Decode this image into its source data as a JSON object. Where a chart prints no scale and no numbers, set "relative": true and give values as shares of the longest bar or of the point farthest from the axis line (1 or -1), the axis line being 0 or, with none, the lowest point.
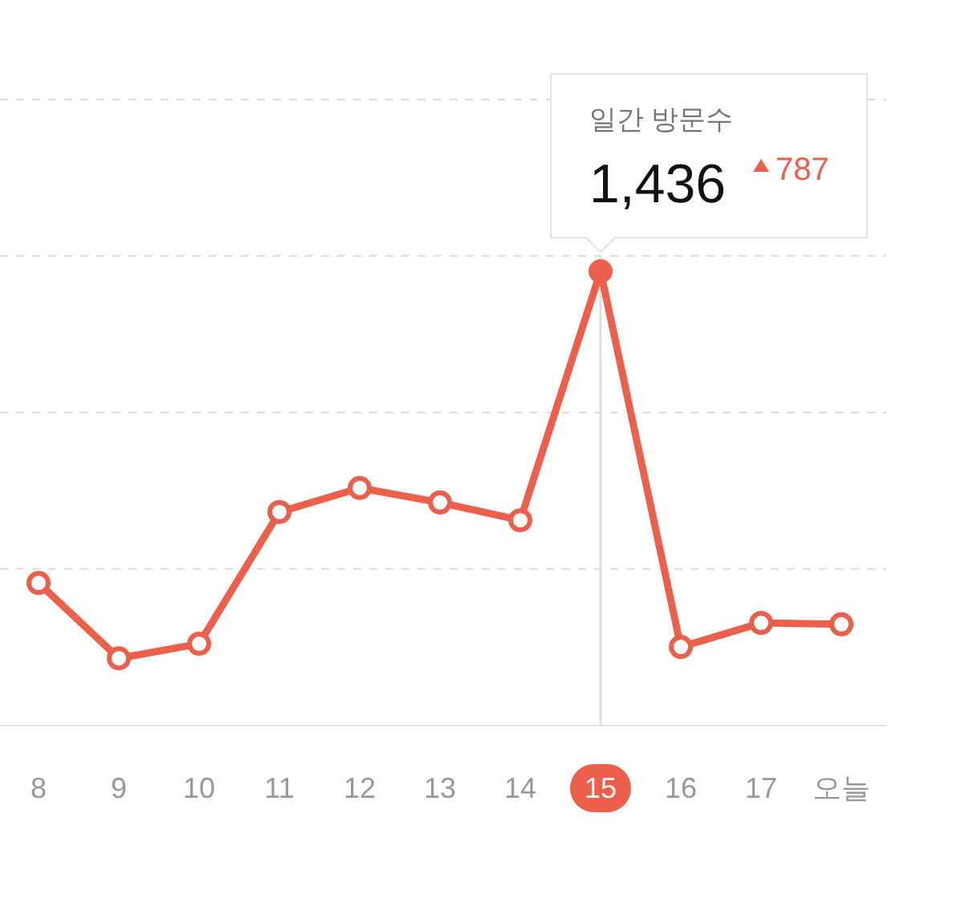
{
  "chart_data": {
    "type": "line",
    "relative": true,
    "categories": [
      "8",
      "9",
      "10",
      "11",
      "12",
      "13",
      "14",
      "15",
      "16",
      "17",
      "오늘"
    ],
    "series": [
      {
        "color": "#eb5f4b",
        "values": [
          0.314,
          0.148,
          0.18,
          0.47,
          0.523,
          0.491,
          0.452,
          1,
          0.173,
          0.226,
          0.223
        ]
      }
    ],
    "marker": "circle",
    "line_style": "solid",
    "ref_lines": [
      {
        "axis": "x",
        "value": "15",
        "color": "#dddddd"
      },
      {
        "axis": "y",
        "value": 0.345,
        "color": "#dddddd",
        "line_style": "dashed"
      },
      {
        "axis": "y",
        "value": 0.689,
        "color": "#dddddd",
        "line_style": "dashed"
      },
      {
        "axis": "y",
        "value": 1.034,
        "color": "#dddddd",
        "line_style": "dashed"
      },
      {
        "axis": "y",
        "value": 1.378,
        "color": "#dddddd",
        "line_style": "dashed"
      }
    ],
    "annotations": [
      "일간 방문수",
      {
        "text": "1,436",
        "x": "15",
        "y": 1
      },
      "787"
    ]
  }
}
